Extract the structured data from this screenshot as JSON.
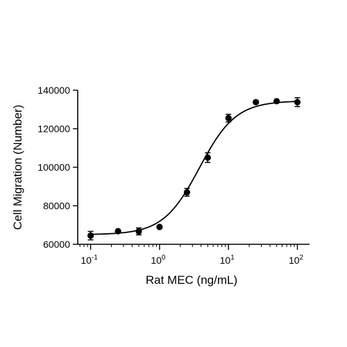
{
  "chart_data": {
    "type": "scatter",
    "title": "",
    "xlabel": "Rat MEC (ng/mL)",
    "ylabel": "Cell Migration (Number)",
    "x_scale": "log10",
    "xlim": [
      0.065,
      150
    ],
    "ylim": [
      60000,
      140000
    ],
    "x_ticks": [
      {
        "value": 0.1,
        "base": "10",
        "exp": "-1"
      },
      {
        "value": 1,
        "base": "10",
        "exp": "0"
      },
      {
        "value": 10,
        "base": "10",
        "exp": "1"
      },
      {
        "value": 100,
        "base": "10",
        "exp": "2"
      }
    ],
    "y_ticks": [
      {
        "value": 60000,
        "label": "60000"
      },
      {
        "value": 80000,
        "label": "80000"
      },
      {
        "value": 100000,
        "label": "100000"
      },
      {
        "value": 120000,
        "label": "120000"
      },
      {
        "value": 140000,
        "label": "140000"
      }
    ],
    "grid": false,
    "legend": "none",
    "series": [
      {
        "points": [
          {
            "x": 0.1,
            "y": 64500,
            "err": 2200
          },
          {
            "x": 0.25,
            "y": 66800,
            "err": 400
          },
          {
            "x": 0.5,
            "y": 66700,
            "err": 1800
          },
          {
            "x": 1,
            "y": 69000,
            "err": 500
          },
          {
            "x": 2.5,
            "y": 87000,
            "err": 2000
          },
          {
            "x": 5,
            "y": 105000,
            "err": 2500
          },
          {
            "x": 10,
            "y": 125500,
            "err": 2000
          },
          {
            "x": 25,
            "y": 133800,
            "err": 700
          },
          {
            "x": 50,
            "y": 134300,
            "err": 500
          },
          {
            "x": 100,
            "y": 133800,
            "err": 2300
          }
        ]
      }
    ],
    "fit_curve": {
      "model": "4PL",
      "bottom": 65000,
      "top": 134500,
      "ec50": 3.8,
      "hill": 1.65,
      "color": "#000000"
    },
    "marker_color": "#000000"
  }
}
